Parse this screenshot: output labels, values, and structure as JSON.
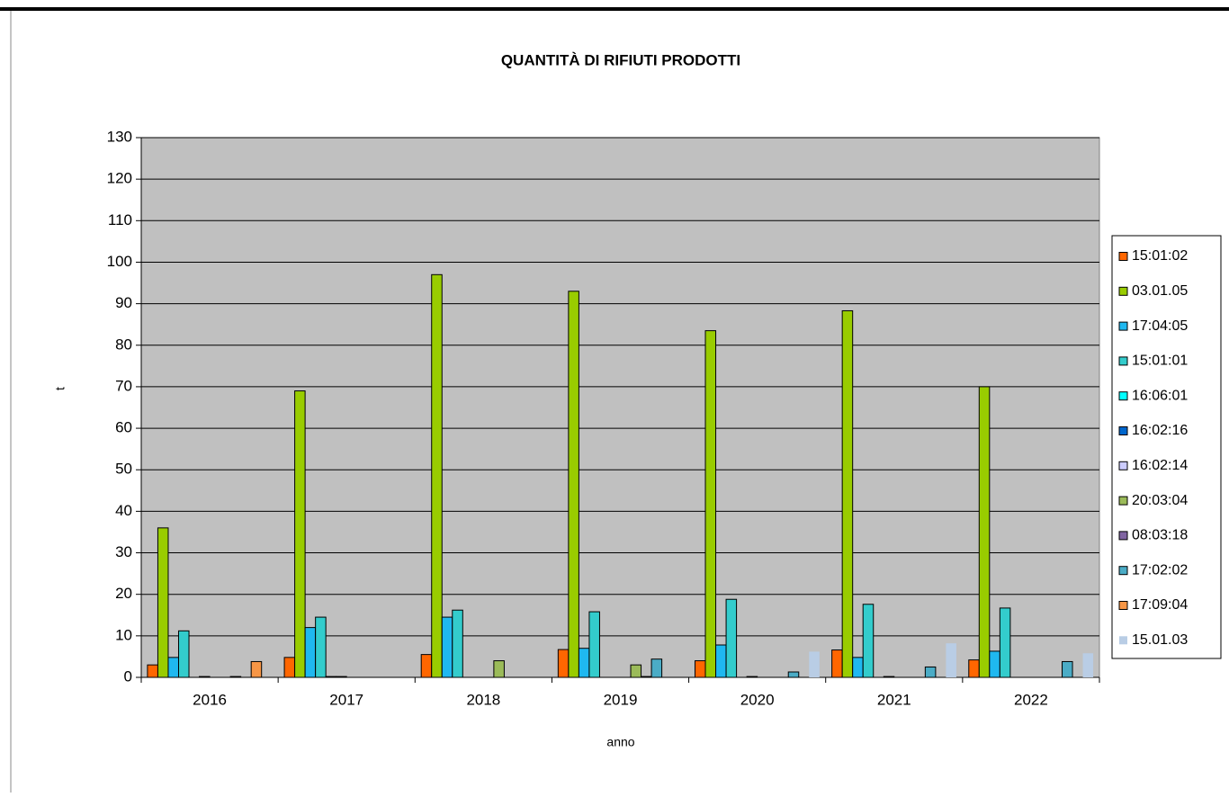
{
  "chart_data": {
    "type": "bar",
    "title": "QUANTITÀ DI RIFIUTI PRODOTTI",
    "x_label": "anno",
    "y_label": "t",
    "categories": [
      "2016",
      "2017",
      "2018",
      "2019",
      "2020",
      "2021",
      "2022"
    ],
    "ylim": [
      0,
      130
    ],
    "yticks": [
      0,
      10,
      20,
      30,
      40,
      50,
      60,
      70,
      80,
      90,
      100,
      110,
      120,
      130
    ],
    "grid": true,
    "legend": "right",
    "series": [
      {
        "name": "15:01:02",
        "color": "#ff6600",
        "values": [
          3,
          4.8,
          5.5,
          6.7,
          4,
          6.6,
          4.2
        ]
      },
      {
        "name": "03.01.05",
        "color": "#99cc00",
        "values": [
          36,
          69,
          97,
          93,
          83.5,
          88.3,
          70
        ]
      },
      {
        "name": "17:04:05",
        "color": "#1fb8f0",
        "values": [
          4.8,
          12,
          14.5,
          7,
          7.8,
          4.8,
          6.3
        ]
      },
      {
        "name": "15:01:01",
        "color": "#33cccc",
        "values": [
          11.2,
          14.5,
          16.2,
          15.8,
          18.8,
          17.6,
          16.7
        ]
      },
      {
        "name": "16:06:01",
        "color": "#00ffff",
        "values": [
          0,
          0.2,
          0,
          0,
          0,
          0,
          0
        ]
      },
      {
        "name": "16:02:16",
        "color": "#0066cc",
        "values": [
          0.2,
          0.2,
          0,
          0,
          0.2,
          0.2,
          0
        ]
      },
      {
        "name": "16:02:14",
        "color": "#ccccff",
        "values": [
          0,
          0,
          0,
          0,
          0,
          0,
          0
        ]
      },
      {
        "name": "20:03:04",
        "color": "#9bbb59",
        "values": [
          0,
          0,
          4,
          3,
          0,
          0,
          0
        ]
      },
      {
        "name": "08:03:18",
        "color": "#8064a2",
        "values": [
          0.2,
          0,
          0,
          0.2,
          0,
          0,
          0
        ]
      },
      {
        "name": "17:02:02",
        "color": "#4bacc6",
        "values": [
          0,
          0,
          0,
          4.4,
          1.3,
          2.5,
          3.8
        ]
      },
      {
        "name": "17:09:04",
        "color": "#f79646",
        "values": [
          3.8,
          0,
          0,
          0,
          0,
          0,
          0
        ]
      },
      {
        "name": "15.01.03",
        "color": "#b9cde5",
        "values": [
          0,
          0,
          0,
          0,
          6.2,
          8.2,
          5.8
        ]
      }
    ]
  }
}
